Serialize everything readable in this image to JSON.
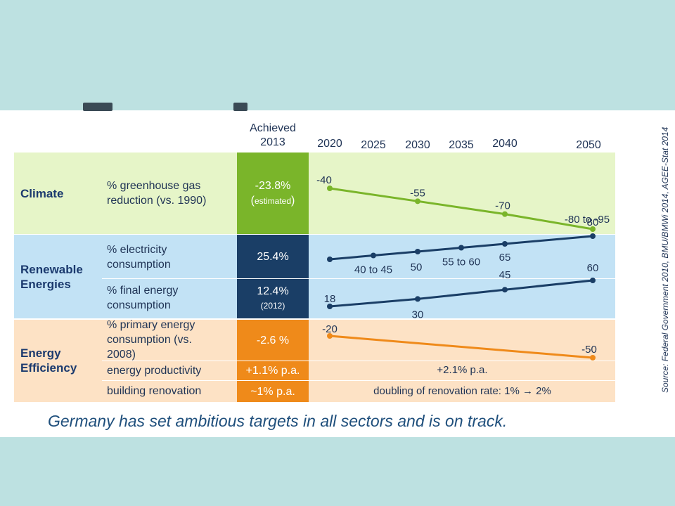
{
  "header": {
    "achieved_line1": "Achieved",
    "achieved_line2": "2013"
  },
  "sections": {
    "climate": {
      "label": "Climate",
      "indicator_line1": "% greenhouse gas",
      "indicator_line2": "reduction (vs. 1990)",
      "achieved_value": "-23.8%",
      "achieved_note": "estimated"
    },
    "renewables": {
      "label_line1": "Renewable",
      "label_line2": "Energies",
      "electricity_line1": "% electricity",
      "electricity_line2": "consumption",
      "electricity_achieved": "25.4%",
      "final_line1": "% final energy",
      "final_line2": "consumption",
      "final_achieved": "12.4%",
      "final_note": "(2012)"
    },
    "efficiency": {
      "label_line1": "Energy",
      "label_line2": "Efficiency",
      "primary_line1": "% primary energy",
      "primary_line2": "consumption (vs.",
      "primary_line3": "2008)",
      "primary_achieved": "-2.6 %",
      "productivity_label": "energy productivity",
      "productivity_achieved": "+1.1% p.a.",
      "productivity_target": "+2.1% p.a.",
      "renovation_label": "building renovation",
      "renovation_achieved": "~1% p.a.",
      "renovation_target": "doubling of renovation rate: 1% → 2%"
    }
  },
  "chart_data": {
    "type": "line",
    "x": [
      2020,
      2025,
      2030,
      2035,
      2040,
      2050
    ],
    "x_tick_labels": [
      "2020",
      "2025",
      "2030",
      "2035",
      "2040",
      "2050"
    ],
    "series": [
      {
        "key": "ghg",
        "color": "#7ab52a",
        "points": [
          {
            "x": 2020,
            "y": -40,
            "label": "-40"
          },
          {
            "x": 2030,
            "y": -55,
            "label": "-55"
          },
          {
            "x": 2040,
            "y": -70,
            "label": "-70"
          },
          {
            "x": 2050,
            "y": -87.5,
            "label": "-80 to -95"
          }
        ]
      },
      {
        "key": "electricity",
        "color": "#1a3e66",
        "points": [
          {
            "x": 2020,
            "y": 35,
            "label": ""
          },
          {
            "x": 2025,
            "y": 42.5,
            "label": "40 to 45"
          },
          {
            "x": 2030,
            "y": 50,
            "label": "50"
          },
          {
            "x": 2035,
            "y": 57.5,
            "label": "55 to 60"
          },
          {
            "x": 2040,
            "y": 65,
            "label": "65"
          },
          {
            "x": 2050,
            "y": 80,
            "label": "80"
          }
        ]
      },
      {
        "key": "final",
        "color": "#1a3e66",
        "points": [
          {
            "x": 2020,
            "y": 18,
            "label": "18"
          },
          {
            "x": 2030,
            "y": 30,
            "label": "30"
          },
          {
            "x": 2040,
            "y": 45,
            "label": "45"
          },
          {
            "x": 2050,
            "y": 60,
            "label": "60"
          }
        ]
      },
      {
        "key": "primary",
        "color": "#ef8a1a",
        "points": [
          {
            "x": 2020,
            "y": -20,
            "label": "-20"
          },
          {
            "x": 2050,
            "y": -50,
            "label": "-50"
          }
        ]
      }
    ]
  },
  "footer": "Germany has set ambitious targets in all sectors and is on track.",
  "source": "Source: Federal Government 2010, BMU/BMWi 2014, AGEE-Stat 2014"
}
